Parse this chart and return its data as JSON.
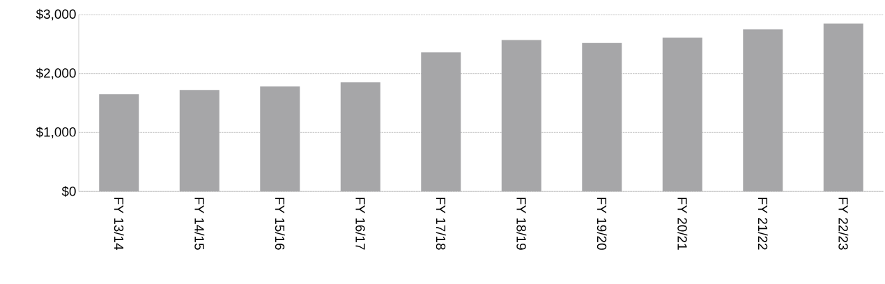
{
  "chart_data": {
    "type": "bar",
    "categories": [
      "FY 13/14",
      "FY 14/15",
      "FY 15/16",
      "FY 16/17",
      "FY 17/18",
      "FY 18/19",
      "FY 19/20",
      "FY 20/21",
      "FY 21/22",
      "FY 22/23"
    ],
    "values": [
      1650,
      1720,
      1780,
      1850,
      2360,
      2570,
      2520,
      2610,
      2750,
      2850
    ],
    "color": "#a6a6a8",
    "ylim": [
      0,
      3000
    ],
    "yticks": [
      {
        "value": 0,
        "label": "$0"
      },
      {
        "value": 1000,
        "label": "$1,000"
      },
      {
        "value": 2000,
        "label": "$2,000"
      },
      {
        "value": 3000,
        "label": "$3,000"
      }
    ],
    "grid": "y"
  }
}
